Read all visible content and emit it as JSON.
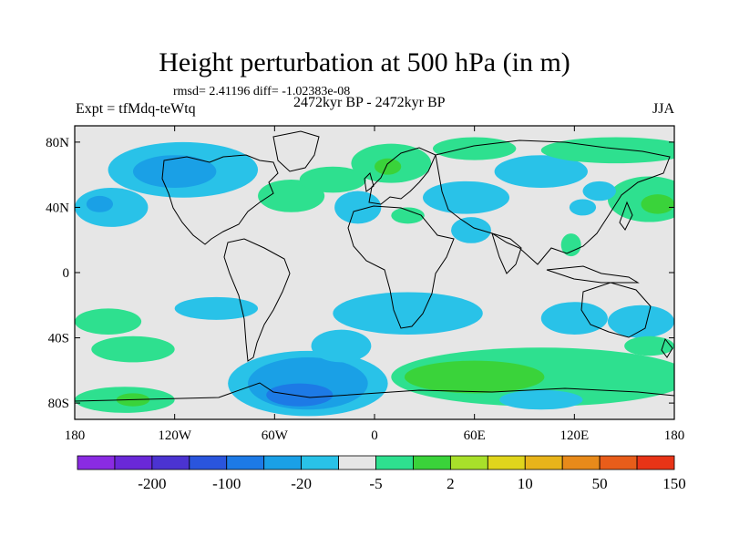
{
  "title": "Height perturbation at 500 hPa (in m)",
  "stats_line": "rmsd= 2.41196 diff= -1.02383e-08",
  "period_label": "2472kyr BP - 2472kyr BP",
  "experiment_label": "Expt = tfMdq-teWtq",
  "season_label": "JJA",
  "lat_labels": [
    {
      "lat": 80,
      "text": "80N"
    },
    {
      "lat": 40,
      "text": "40N"
    },
    {
      "lat": 0,
      "text": "0"
    },
    {
      "lat": -40,
      "text": "40S"
    },
    {
      "lat": -80,
      "text": "80S"
    }
  ],
  "lon_labels": [
    {
      "lon": -180,
      "text": "180"
    },
    {
      "lon": -120,
      "text": "120W"
    },
    {
      "lon": -60,
      "text": "60W"
    },
    {
      "lon": 0,
      "text": "0"
    },
    {
      "lon": 60,
      "text": "60E"
    },
    {
      "lon": 120,
      "text": "120E"
    },
    {
      "lon": 180,
      "text": "180"
    }
  ],
  "colorbar": {
    "colors": [
      "#8a2be2",
      "#6a28d8",
      "#4b33d1",
      "#2a55dd",
      "#1d7ae6",
      "#1aa0e6",
      "#29c2e8",
      "#e6e6e6",
      "#2ee08f",
      "#3ad33a",
      "#a8e02a",
      "#e0d51c",
      "#e8b41a",
      "#e88a1a",
      "#e85d1a",
      "#e83417"
    ],
    "labels": [
      {
        "after_index": 1,
        "text": "-200"
      },
      {
        "after_index": 3,
        "text": "-100"
      },
      {
        "after_index": 5,
        "text": "-20"
      },
      {
        "after_index": 7,
        "text": "-5"
      },
      {
        "after_index": 9,
        "text": "2"
      },
      {
        "after_index": 11,
        "text": "10"
      },
      {
        "after_index": 13,
        "text": "50"
      },
      {
        "after_index": 15,
        "text": "150"
      }
    ]
  },
  "colors": {
    "background_zero": "#e6e6e6",
    "light_blue": "#29c2e8",
    "mid_blue": "#1aa0e6",
    "dark_blue": "#1d7ae6",
    "green_light": "#2ee08f",
    "green": "#3ad33a"
  },
  "map_data": {
    "lat_range": [
      -90,
      90
    ],
    "lon_range": [
      -180,
      180
    ],
    "regions": [
      {
        "level": "light_blue",
        "lon": -115,
        "lat": 63,
        "rx": 45,
        "ry": 17
      },
      {
        "level": "mid_blue",
        "lon": -120,
        "lat": 62,
        "rx": 25,
        "ry": 10
      },
      {
        "level": "light_blue",
        "lon": -158,
        "lat": 40,
        "rx": 22,
        "ry": 12
      },
      {
        "level": "mid_blue",
        "lon": -165,
        "lat": 42,
        "rx": 8,
        "ry": 5
      },
      {
        "level": "green_light",
        "lon": -50,
        "lat": 47,
        "rx": 20,
        "ry": 10
      },
      {
        "level": "green_light",
        "lon": -25,
        "lat": 57,
        "rx": 20,
        "ry": 8
      },
      {
        "level": "light_blue",
        "lon": -10,
        "lat": 40,
        "rx": 14,
        "ry": 10
      },
      {
        "level": "green_light",
        "lon": 10,
        "lat": 67,
        "rx": 24,
        "ry": 12
      },
      {
        "level": "green",
        "lon": 8,
        "lat": 65,
        "rx": 8,
        "ry": 5
      },
      {
        "level": "light_blue",
        "lon": 55,
        "lat": 46,
        "rx": 26,
        "ry": 10
      },
      {
        "level": "green_light",
        "lon": 20,
        "lat": 35,
        "rx": 10,
        "ry": 5
      },
      {
        "level": "light_blue",
        "lon": 58,
        "lat": 26,
        "rx": 12,
        "ry": 8
      },
      {
        "level": "light_blue",
        "lon": 100,
        "lat": 62,
        "rx": 28,
        "ry": 10
      },
      {
        "level": "green_light",
        "lon": 60,
        "lat": 76,
        "rx": 25,
        "ry": 7
      },
      {
        "level": "green_light",
        "lon": 145,
        "lat": 75,
        "rx": 45,
        "ry": 8
      },
      {
        "level": "green_light",
        "lon": 165,
        "lat": 45,
        "rx": 25,
        "ry": 14
      },
      {
        "level": "green",
        "lon": 170,
        "lat": 42,
        "rx": 10,
        "ry": 6
      },
      {
        "level": "light_blue",
        "lon": 135,
        "lat": 50,
        "rx": 10,
        "ry": 6
      },
      {
        "level": "green_light",
        "lon": 118,
        "lat": 17,
        "rx": 6,
        "ry": 7
      },
      {
        "level": "light_blue",
        "lon": 125,
        "lat": 40,
        "rx": 8,
        "ry": 5
      },
      {
        "level": "light_blue",
        "lon": 20,
        "lat": -25,
        "rx": 45,
        "ry": 13
      },
      {
        "level": "light_blue",
        "lon": 120,
        "lat": -28,
        "rx": 20,
        "ry": 10
      },
      {
        "level": "green_light",
        "lon": -160,
        "lat": -30,
        "rx": 20,
        "ry": 8
      },
      {
        "level": "light_blue",
        "lon": -95,
        "lat": -22,
        "rx": 25,
        "ry": 7
      },
      {
        "level": "green_light",
        "lon": -145,
        "lat": -47,
        "rx": 25,
        "ry": 8
      },
      {
        "level": "light_blue",
        "lon": -40,
        "lat": -68,
        "rx": 48,
        "ry": 20
      },
      {
        "level": "mid_blue",
        "lon": -40,
        "lat": -68,
        "rx": 36,
        "ry": 16
      },
      {
        "level": "dark_blue",
        "lon": -45,
        "lat": -75,
        "rx": 20,
        "ry": 7
      },
      {
        "level": "light_blue",
        "lon": -20,
        "lat": -45,
        "rx": 18,
        "ry": 10
      },
      {
        "level": "green_light",
        "lon": -150,
        "lat": -78,
        "rx": 30,
        "ry": 8
      },
      {
        "level": "green",
        "lon": -145,
        "lat": -78,
        "rx": 10,
        "ry": 4
      },
      {
        "level": "green_light",
        "lon": 100,
        "lat": -64,
        "rx": 90,
        "ry": 18
      },
      {
        "level": "green",
        "lon": 60,
        "lat": -64,
        "rx": 42,
        "ry": 10
      },
      {
        "level": "light_blue",
        "lon": 100,
        "lat": -78,
        "rx": 25,
        "ry": 6
      },
      {
        "level": "light_blue",
        "lon": 160,
        "lat": -30,
        "rx": 20,
        "ry": 10
      },
      {
        "level": "green_light",
        "lon": 165,
        "lat": -45,
        "rx": 15,
        "ry": 6
      }
    ]
  }
}
